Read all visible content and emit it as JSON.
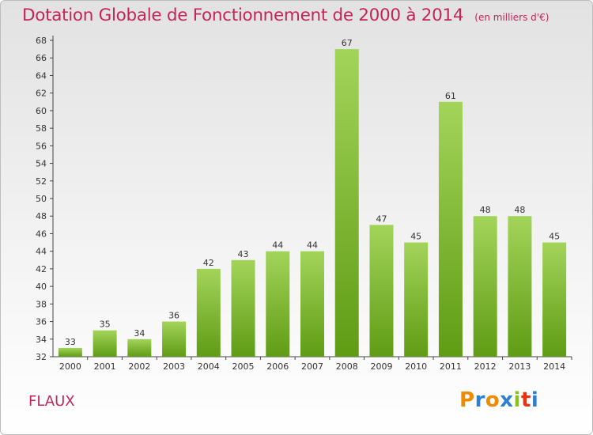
{
  "title": "Dotation Globale de Fonctionnement de 2000 à 2014",
  "unit_label": "(en milliers d'€)",
  "commune": "FLAUX",
  "logo": {
    "letters": [
      "P",
      "r",
      "o",
      "x",
      "i",
      "t",
      "i"
    ],
    "colors": [
      "#f08a00",
      "#2f7fd1",
      "#f08a00",
      "#2f7fd1",
      "#8cc21e",
      "#e63312",
      "#2f7fd1"
    ]
  },
  "colors": {
    "bar_top": "#a3d45a",
    "bar_bottom": "#5f9c14",
    "title": "#c3245a"
  },
  "chart_data": {
    "type": "bar",
    "title": "Dotation Globale de Fonctionnement de 2000 à 2014",
    "subtitle": "(en milliers d'€)",
    "categories": [
      "2000",
      "2001",
      "2002",
      "2003",
      "2004",
      "2005",
      "2006",
      "2007",
      "2008",
      "2009",
      "2010",
      "2011",
      "2012",
      "2013",
      "2014"
    ],
    "values": [
      33,
      35,
      34,
      36,
      42,
      43,
      44,
      44,
      67,
      47,
      45,
      61,
      48,
      48,
      45
    ],
    "ylim": [
      32,
      68
    ],
    "yticks": [
      32,
      34,
      36,
      38,
      40,
      42,
      44,
      46,
      48,
      50,
      52,
      54,
      56,
      58,
      60,
      62,
      64,
      66,
      68
    ],
    "grid": false,
    "legend": "none"
  }
}
